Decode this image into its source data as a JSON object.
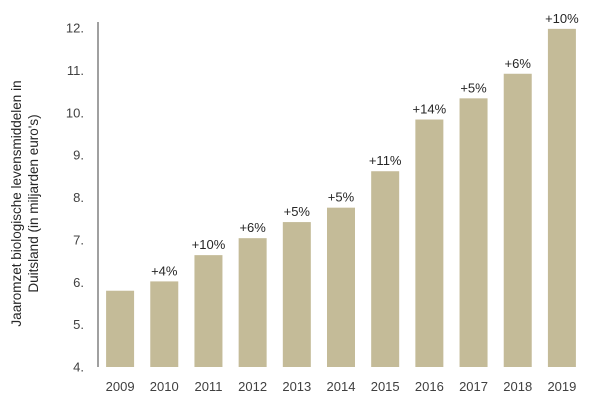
{
  "chart_data": {
    "type": "bar",
    "categories": [
      "2009",
      "2010",
      "2011",
      "2012",
      "2013",
      "2014",
      "2015",
      "2016",
      "2017",
      "2018",
      "2019"
    ],
    "values": [
      5.8,
      6.02,
      6.64,
      7.04,
      7.42,
      7.76,
      8.62,
      9.84,
      10.34,
      10.92,
      11.98
    ],
    "data_labels": [
      "",
      "+4%",
      "+10%",
      "+6%",
      "+5%",
      "+5%",
      "+11%",
      "+14%",
      "+5%",
      "+6%",
      "+10%"
    ],
    "ylabel_lines": [
      "Jaaromzet biologische levensmiddelen in",
      "Duitsland (in miljarden euro's)"
    ],
    "ylim": [
      4,
      12
    ],
    "yticks": [
      "4.",
      "5.",
      "6.",
      "7.",
      "8.",
      "9.",
      "10.",
      "11.",
      "12."
    ],
    "grid": false,
    "legend": "none",
    "bar_color": "#c4bb98"
  }
}
